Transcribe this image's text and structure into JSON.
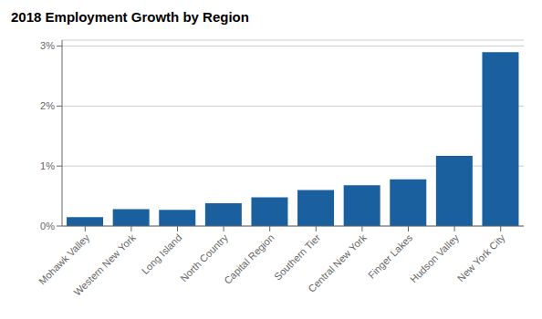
{
  "chart_data": {
    "type": "bar",
    "title": "2018 Employment Growth by Region",
    "categories": [
      "Mohawk Valley",
      "Western New York",
      "Long Island",
      "North Country",
      "Capital Region",
      "Southern Tier",
      "Central New York",
      "Finger Lakes",
      "Hudson Valley",
      "New York City"
    ],
    "values": [
      0.0015,
      0.0028,
      0.0027,
      0.0038,
      0.0048,
      0.006,
      0.0068,
      0.0078,
      0.0117,
      0.029
    ],
    "color": "#1A5F9E",
    "ylim": [
      0,
      0.031
    ],
    "yticks": [
      {
        "value": 0.0,
        "label": "0%"
      },
      {
        "value": 0.01,
        "label": "1%"
      },
      {
        "value": 0.02,
        "label": "2%"
      },
      {
        "value": 0.03,
        "label": "3%"
      }
    ],
    "grid": true
  }
}
